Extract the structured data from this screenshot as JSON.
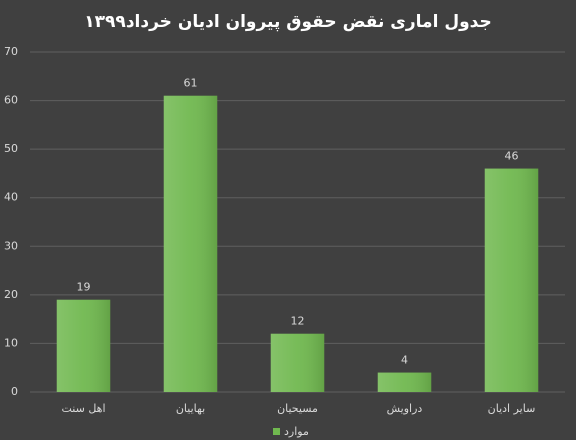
{
  "chart_data": {
    "type": "bar",
    "title": "جدول اماری نقض حقوق پیروان ادیان خرداد۱۳۹۹",
    "categories": [
      "اهل سنت",
      "بهاییان",
      "مسیحیان",
      "دراویش",
      "سایر ادیان"
    ],
    "series": [
      {
        "name": "موارد",
        "color": "#70b84f",
        "values": [
          19,
          61,
          12,
          4,
          46
        ]
      }
    ],
    "ylim": [
      0,
      70
    ],
    "yticks": [
      0,
      10,
      20,
      30,
      40,
      50,
      60,
      70
    ],
    "grid": true
  }
}
